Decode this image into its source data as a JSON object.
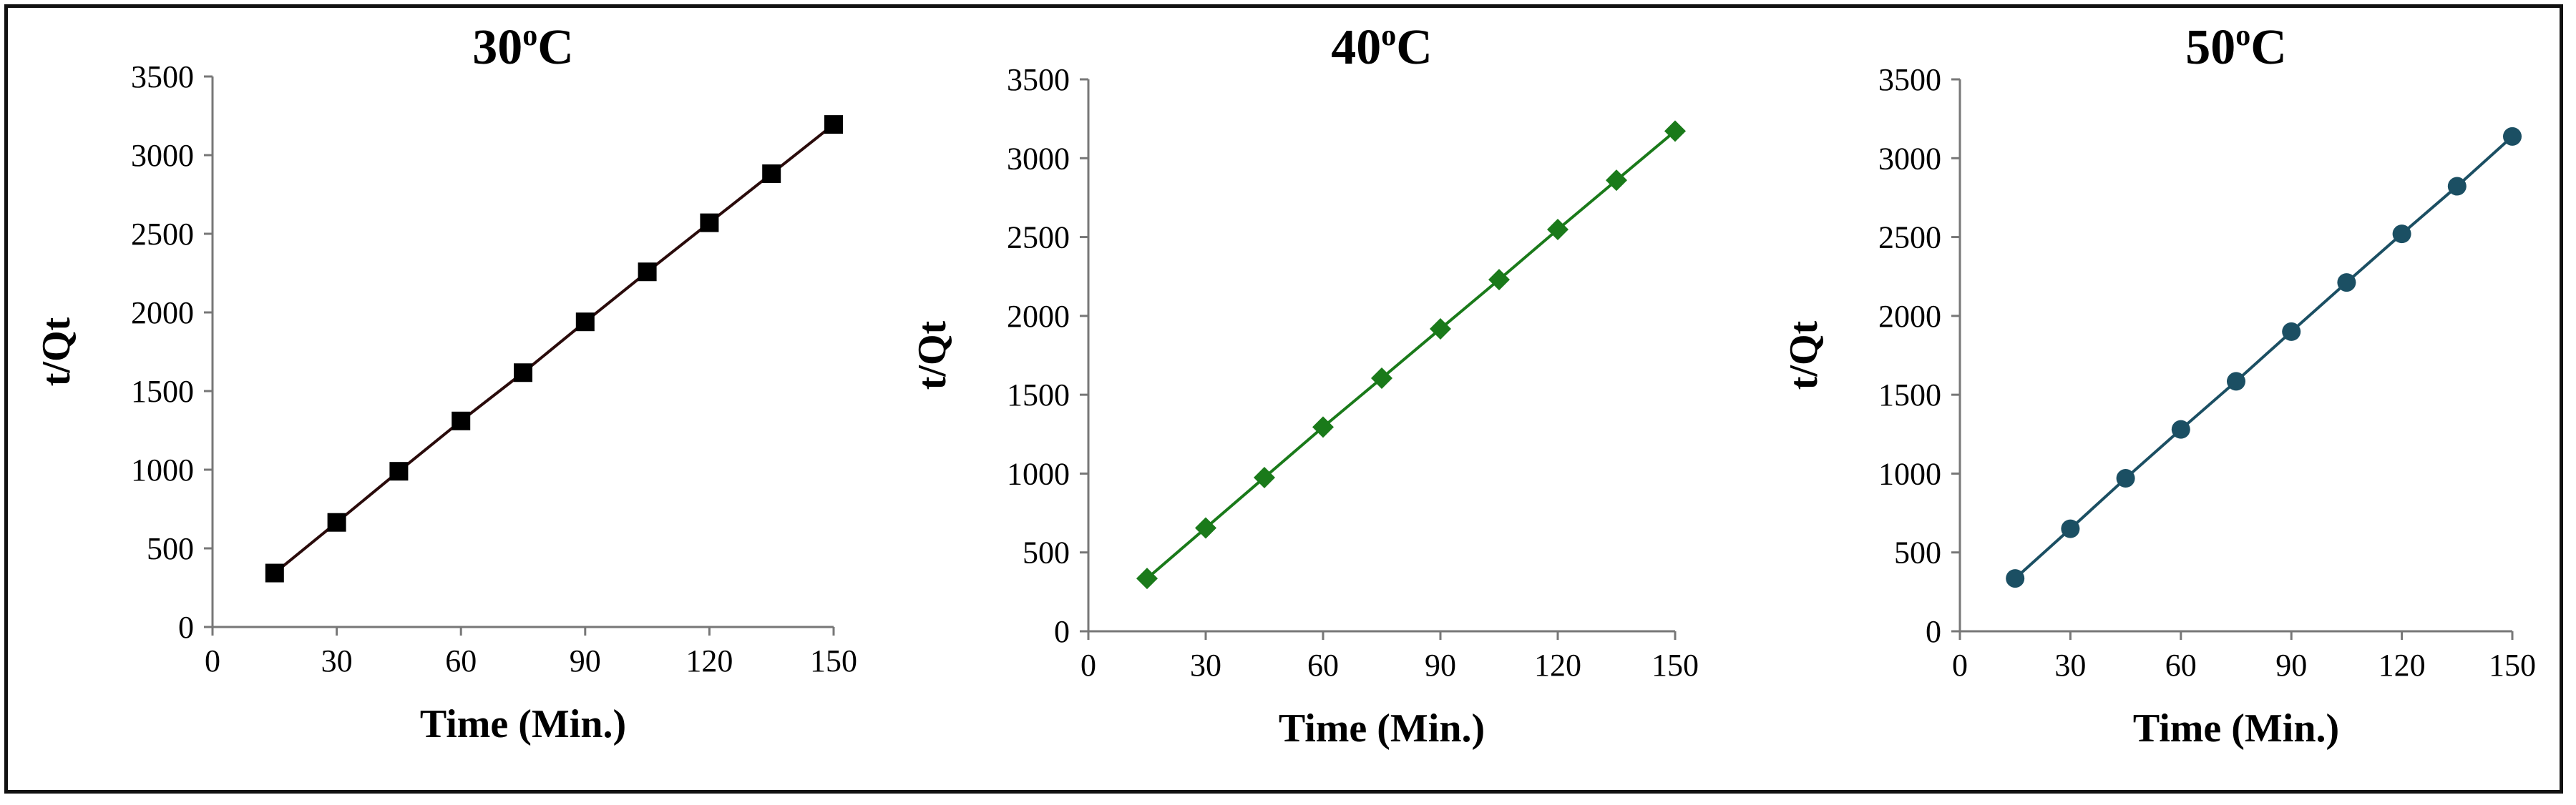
{
  "chart_data": [
    {
      "type": "line",
      "title_main": "30",
      "title_sup": "o",
      "title_end": "C",
      "xlabel": "Time (Min.)",
      "ylabel": "t/Qt",
      "x": [
        15,
        30,
        45,
        60,
        75,
        90,
        105,
        120,
        135,
        150
      ],
      "series": [
        {
          "name": "30oC",
          "marker": "square",
          "color": "#000000",
          "line_color": "#2a0b0b",
          "values": [
            343,
            665,
            990,
            1310,
            1617,
            1940,
            2258,
            2570,
            2882,
            3195
          ]
        }
      ],
      "xlim": [
        0,
        150
      ],
      "xticks": [
        0,
        30,
        60,
        90,
        120,
        150
      ],
      "ylim": [
        0,
        3500
      ],
      "yticks": [
        0,
        500,
        1000,
        1500,
        2000,
        2500,
        3000,
        3500
      ],
      "grid": false
    },
    {
      "type": "line",
      "title_main": "40",
      "title_sup": "o",
      "title_end": "C",
      "xlabel": "Time (Min.)",
      "ylabel": "t/Qt",
      "x": [
        15,
        30,
        45,
        60,
        75,
        90,
        105,
        120,
        135,
        150
      ],
      "series": [
        {
          "name": "40oC",
          "marker": "diamond",
          "color": "#1a7a1a",
          "line_color": "#1a7a1a",
          "values": [
            335,
            655,
            975,
            1295,
            1605,
            1918,
            2230,
            2548,
            2860,
            3172
          ]
        }
      ],
      "xlim": [
        0,
        150
      ],
      "xticks": [
        0,
        30,
        60,
        90,
        120,
        150
      ],
      "ylim": [
        0,
        3500
      ],
      "yticks": [
        0,
        500,
        1000,
        1500,
        2000,
        2500,
        3000,
        3500
      ],
      "grid": false
    },
    {
      "type": "line",
      "title_main": "50",
      "title_sup": "o",
      "title_end": "C",
      "xlabel": "Time (Min.)",
      "ylabel": "t/Qt",
      "x": [
        15,
        30,
        45,
        60,
        75,
        90,
        105,
        120,
        135,
        150
      ],
      "series": [
        {
          "name": "50oC",
          "marker": "circle",
          "color": "#1b4f63",
          "line_color": "#1b4f63",
          "values": [
            335,
            650,
            970,
            1280,
            1585,
            1900,
            2212,
            2520,
            2822,
            3138
          ]
        }
      ],
      "xlim": [
        0,
        150
      ],
      "xticks": [
        0,
        30,
        60,
        90,
        120,
        150
      ],
      "ylim": [
        0,
        3500
      ],
      "yticks": [
        0,
        500,
        1000,
        1500,
        2000,
        2500,
        3000,
        3500
      ],
      "grid": false
    }
  ]
}
